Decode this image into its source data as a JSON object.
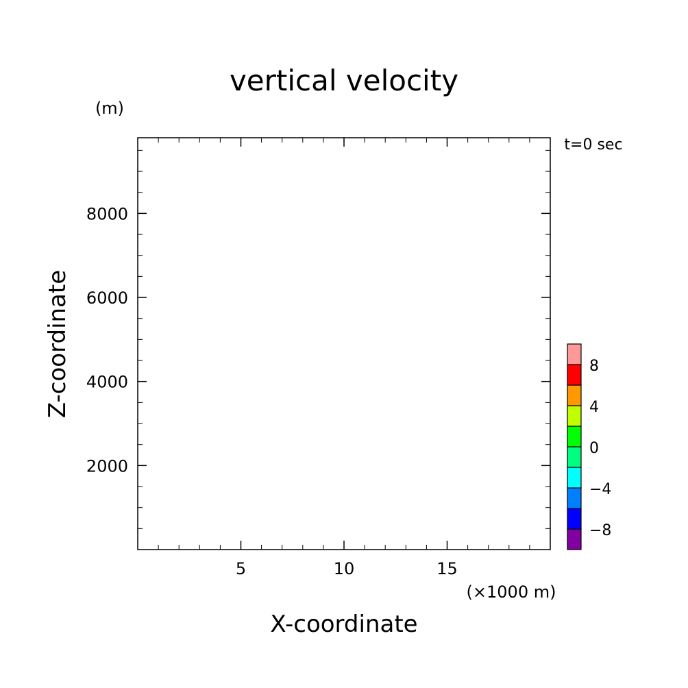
{
  "chart_data": {
    "type": "heatmap",
    "title": "vertical velocity",
    "xlabel": "X-coordinate",
    "ylabel": "Z-coordinate",
    "x_unit": "(×1000 m)",
    "y_unit": "(m)",
    "time_label": "t=0 sec",
    "xlim": [
      0,
      20
    ],
    "ylim": [
      0,
      9800
    ],
    "x_major_ticks": [
      5,
      10,
      15
    ],
    "x_minor_step": 1,
    "y_major_ticks": [
      2000,
      4000,
      6000,
      8000
    ],
    "y_minor_step": 500,
    "field_values": [],
    "colorbar": {
      "levels": [
        -10,
        -8,
        -6,
        -4,
        -2,
        0,
        2,
        4,
        6,
        8,
        10
      ],
      "colors": [
        "#8000a0",
        "#0000ff",
        "#0080ff",
        "#00ffff",
        "#00ff80",
        "#00ff00",
        "#c0ff00",
        "#ff9900",
        "#ff0000",
        "#ff9999"
      ],
      "labels": [
        "-8",
        "-4",
        "0",
        "4",
        "8"
      ],
      "label_values": [
        -8,
        -4,
        0,
        4,
        8
      ]
    }
  }
}
